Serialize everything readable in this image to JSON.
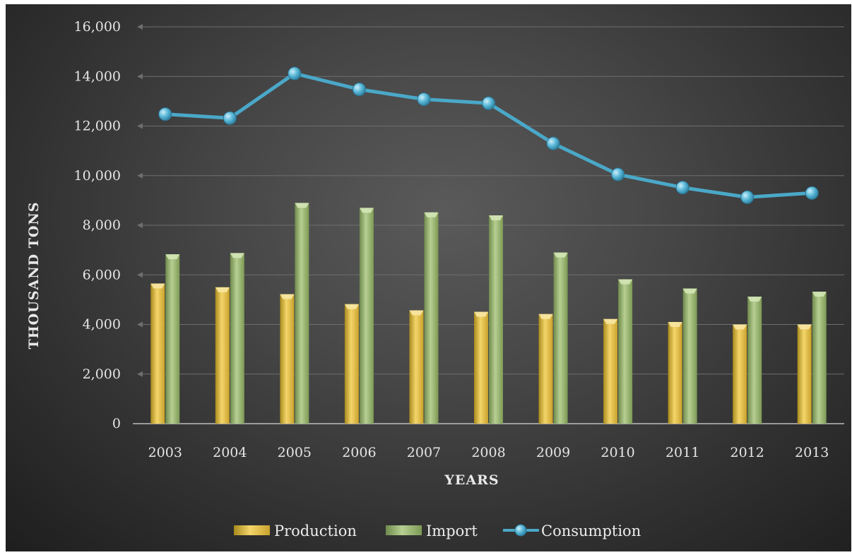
{
  "chart_data": {
    "type": "bar",
    "categories": [
      "2003",
      "2004",
      "2005",
      "2006",
      "2007",
      "2008",
      "2009",
      "2010",
      "2011",
      "2012",
      "2013"
    ],
    "series": [
      {
        "name": "Production",
        "type": "bar",
        "color": "#e8c44a",
        "values": [
          5650,
          5500,
          5220,
          4820,
          4570,
          4510,
          4420,
          4220,
          4100,
          4000,
          4000
        ]
      },
      {
        "name": "Import",
        "type": "bar",
        "color": "#9cb872",
        "values": [
          6830,
          6880,
          8900,
          8700,
          8520,
          8400,
          6900,
          5820,
          5450,
          5120,
          5320
        ]
      },
      {
        "name": "Consumption",
        "type": "line",
        "color": "#4aa8c8",
        "values": [
          12480,
          12320,
          14120,
          13480,
          13080,
          12920,
          11300,
          10050,
          9520,
          9130,
          9300
        ]
      }
    ],
    "xlabel": "YEARS",
    "ylabel": "THOUSAND  TONS",
    "ylim": [
      0,
      16000
    ],
    "yticks": [
      0,
      2000,
      4000,
      6000,
      8000,
      10000,
      12000,
      14000,
      16000
    ],
    "ytick_labels": [
      "0",
      "2,000",
      "4,000",
      "6,000",
      "8,000",
      "10,000",
      "12,000",
      "14,000",
      "16,000"
    ],
    "grid": true,
    "legend_position": "bottom"
  }
}
